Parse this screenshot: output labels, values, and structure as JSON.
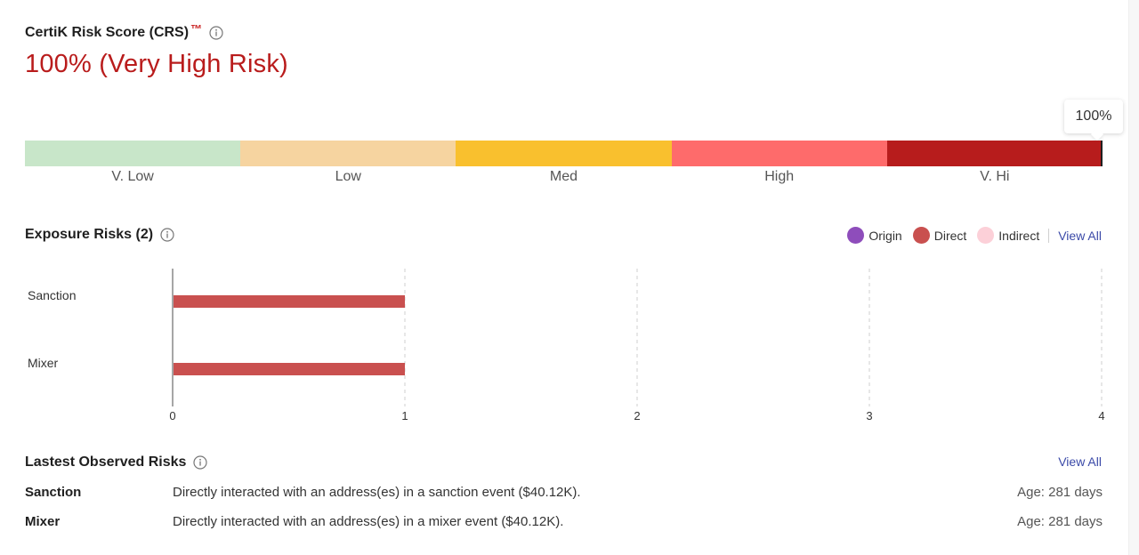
{
  "crs": {
    "title": "CertiK Risk Score (CRS)",
    "tm": "™",
    "score_text": "100% (Very High Risk)",
    "score_value": 100,
    "tooltip": "100%",
    "segments": [
      {
        "label": "V. Low",
        "color": "#c8e6c9",
        "from": 0,
        "to": 20
      },
      {
        "label": "Low",
        "color": "#f6d4a0",
        "from": 20,
        "to": 40
      },
      {
        "label": "Med",
        "color": "#f9c02e",
        "from": 40,
        "to": 60
      },
      {
        "label": "High",
        "color": "#fe6b6b",
        "from": 60,
        "to": 80
      },
      {
        "label": "V. Hi",
        "color": "#b71c1c",
        "from": 80,
        "to": 100
      }
    ]
  },
  "exposure": {
    "title": "Exposure Risks (2)",
    "legend": [
      {
        "label": "Origin",
        "color": "#8e4dbb"
      },
      {
        "label": "Direct",
        "color": "#c9504f"
      },
      {
        "label": "Indirect",
        "color": "#fcd0d8"
      }
    ],
    "view_all": "View All"
  },
  "chart_data": {
    "type": "bar",
    "orientation": "horizontal",
    "categories": [
      "Sanction",
      "Mixer"
    ],
    "series": [
      {
        "name": "Direct",
        "values": [
          1,
          1
        ],
        "color": "#c9504f"
      }
    ],
    "xlim": [
      0,
      4
    ],
    "xticks": [
      "0",
      "1",
      "2",
      "3",
      "4"
    ],
    "grid": true
  },
  "observed": {
    "title": "Lastest Observed Risks",
    "view_all": "View All",
    "rows": [
      {
        "type": "Sanction",
        "desc": "Directly interacted with an address(es) in a sanction event ($40.12K).",
        "age": "Age: 281 days"
      },
      {
        "type": "Mixer",
        "desc": "Directly interacted with an address(es) in a mixer event ($40.12K).",
        "age": "Age: 281 days"
      }
    ]
  }
}
